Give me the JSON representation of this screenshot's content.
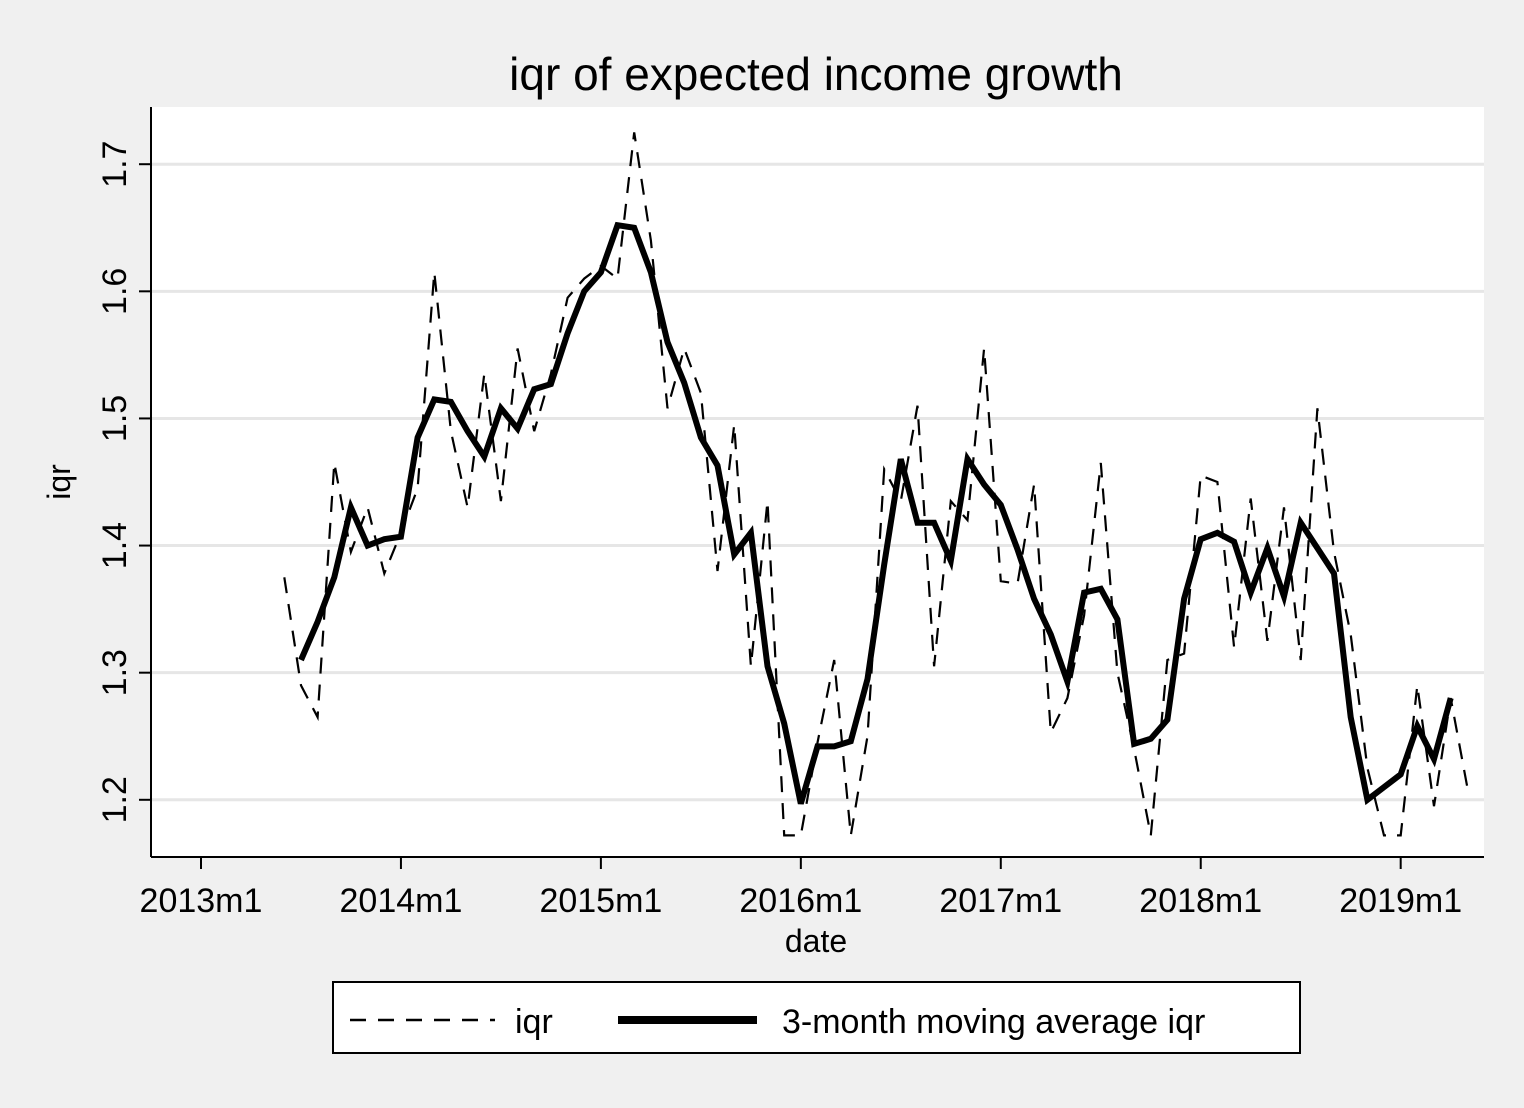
{
  "chart_data": {
    "type": "line",
    "title": "iqr of expected income growth",
    "xlabel": "date",
    "ylabel": "iqr",
    "x_tick_labels": [
      "2013m1",
      "2014m1",
      "2015m1",
      "2016m1",
      "2017m1",
      "2018m1",
      "2019m1"
    ],
    "y_tick_labels": [
      "1.2",
      "1.3",
      "1.4",
      "1.5",
      "1.6",
      "1.7"
    ],
    "y_ticks": [
      1.2,
      1.3,
      1.4,
      1.5,
      1.6,
      1.7
    ],
    "x_range": [
      "2012m10",
      "2019m6"
    ],
    "y_range": [
      1.155,
      1.745
    ],
    "grid": "horizontal",
    "legend_position": "bottom",
    "series": [
      {
        "name": "iqr",
        "style": "dashed",
        "color": "#000000",
        "x": [
          "2013m6",
          "2013m7",
          "2013m8",
          "2013m9",
          "2013m10",
          "2013m11",
          "2013m12",
          "2014m1",
          "2014m2",
          "2014m3",
          "2014m4",
          "2014m5",
          "2014m6",
          "2014m7",
          "2014m8",
          "2014m9",
          "2014m10",
          "2014m11",
          "2014m12",
          "2015m1",
          "2015m2",
          "2015m3",
          "2015m4",
          "2015m5",
          "2015m6",
          "2015m7",
          "2015m8",
          "2015m9",
          "2015m10",
          "2015m11",
          "2015m12",
          "2016m1",
          "2016m2",
          "2016m3",
          "2016m4",
          "2016m5",
          "2016m6",
          "2016m7",
          "2016m8",
          "2016m9",
          "2016m10",
          "2016m11",
          "2016m12",
          "2017m1",
          "2017m2",
          "2017m3",
          "2017m4",
          "2017m5",
          "2017m6",
          "2017m7",
          "2017m8",
          "2017m9",
          "2017m10",
          "2017m11",
          "2017m12",
          "2018m1",
          "2018m2",
          "2018m3",
          "2018m4",
          "2018m5",
          "2018m6",
          "2018m7",
          "2018m8",
          "2018m9",
          "2018m10",
          "2018m11",
          "2018m12",
          "2019m1",
          "2019m2",
          "2019m3",
          "2019m4",
          "2019m5"
        ],
        "values": [
          1.375,
          1.29,
          1.265,
          1.465,
          1.395,
          1.43,
          1.378,
          1.41,
          1.445,
          1.615,
          1.49,
          1.43,
          1.535,
          1.435,
          1.555,
          1.49,
          1.535,
          1.595,
          1.61,
          1.62,
          1.61,
          1.725,
          1.64,
          1.508,
          1.555,
          1.52,
          1.38,
          1.495,
          1.305,
          1.435,
          1.172,
          1.172,
          1.245,
          1.31,
          1.172,
          1.25,
          1.46,
          1.435,
          1.51,
          1.305,
          1.435,
          1.42,
          1.555,
          1.372,
          1.37,
          1.448,
          1.253,
          1.28,
          1.345,
          1.465,
          1.3,
          1.24,
          1.172,
          1.31,
          1.315,
          1.455,
          1.45,
          1.32,
          1.437,
          1.325,
          1.43,
          1.31,
          1.508,
          1.395,
          1.33,
          1.225,
          1.172,
          1.172,
          1.29,
          1.195,
          1.28,
          1.21
        ]
      },
      {
        "name": "3-month moving average iqr",
        "style": "solid",
        "color": "#000000",
        "x": [
          "2013m7",
          "2013m8",
          "2013m9",
          "2013m10",
          "2013m11",
          "2013m12",
          "2014m1",
          "2014m2",
          "2014m3",
          "2014m4",
          "2014m5",
          "2014m6",
          "2014m7",
          "2014m8",
          "2014m9",
          "2014m10",
          "2014m11",
          "2014m12",
          "2015m1",
          "2015m2",
          "2015m3",
          "2015m4",
          "2015m5",
          "2015m6",
          "2015m7",
          "2015m8",
          "2015m9",
          "2015m10",
          "2015m11",
          "2015m12",
          "2016m1",
          "2016m2",
          "2016m3",
          "2016m4",
          "2016m5",
          "2016m6",
          "2016m7",
          "2016m8",
          "2016m9",
          "2016m10",
          "2016m11",
          "2016m12",
          "2017m1",
          "2017m2",
          "2017m3",
          "2017m4",
          "2017m5",
          "2017m6",
          "2017m7",
          "2017m8",
          "2017m9",
          "2017m10",
          "2017m11",
          "2017m12",
          "2018m1",
          "2018m2",
          "2018m3",
          "2018m4",
          "2018m5",
          "2018m6",
          "2018m7",
          "2018m8",
          "2018m9",
          "2018m10",
          "2018m11",
          "2018m12",
          "2019m1",
          "2019m2",
          "2019m3",
          "2019m4"
        ],
        "values": [
          1.31,
          1.34,
          1.375,
          1.43,
          1.4,
          1.405,
          1.407,
          1.485,
          1.515,
          1.513,
          1.49,
          1.47,
          1.508,
          1.492,
          1.523,
          1.527,
          1.567,
          1.6,
          1.615,
          1.652,
          1.65,
          1.615,
          1.56,
          1.528,
          1.485,
          1.463,
          1.393,
          1.41,
          1.305,
          1.26,
          1.197,
          1.242,
          1.242,
          1.246,
          1.295,
          1.385,
          1.468,
          1.418,
          1.418,
          1.388,
          1.468,
          1.448,
          1.432,
          1.397,
          1.358,
          1.33,
          1.293,
          1.363,
          1.366,
          1.342,
          1.244,
          1.248,
          1.263,
          1.358,
          1.405,
          1.41,
          1.403,
          1.363,
          1.398,
          1.36,
          1.418,
          1.398,
          1.378,
          1.265,
          1.2,
          1.21,
          1.22,
          1.258,
          1.232,
          1.28
        ]
      }
    ]
  }
}
